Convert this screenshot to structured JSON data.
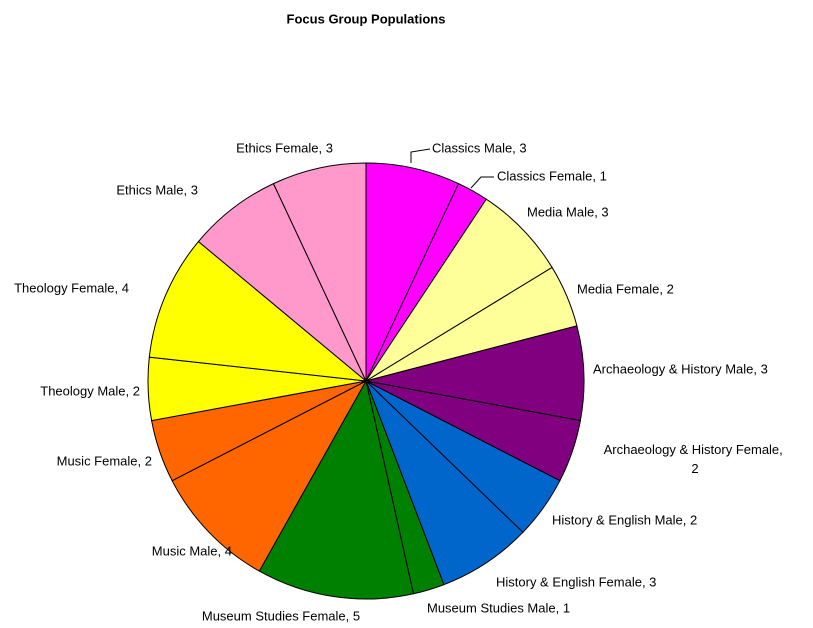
{
  "chart_data": {
    "type": "pie",
    "title": "Focus Group Populations",
    "values": [
      3,
      1,
      3,
      2,
      3,
      2,
      2,
      3,
      1,
      5,
      4,
      2,
      2,
      4,
      3,
      3
    ],
    "value_labels": [
      "Classics Male, 3",
      "Classics Female, 1",
      "Media Male, 3",
      "Media Female, 2",
      "Archaeology & History Male, 3",
      "Archaeology & History Female, 2",
      "History & English Male, 2",
      "History & English Female, 3",
      "Museum Studies Male, 1",
      "Museum Studies Female, 5",
      "Music Male, 4",
      "Music Female, 2",
      "Theology Male, 2",
      "Theology Female, 4",
      "Ethics Male, 3",
      "Ethics Female, 3"
    ],
    "colors": [
      "#ff00ff",
      "#ff00ff",
      "#ffff99",
      "#ffff99",
      "#800080",
      "#800080",
      "#0066cc",
      "#0066cc",
      "#008000",
      "#008000",
      "#ff6600",
      "#ff6600",
      "#ffff00",
      "#ffff00",
      "#ff99cc",
      "#ff99cc"
    ]
  }
}
